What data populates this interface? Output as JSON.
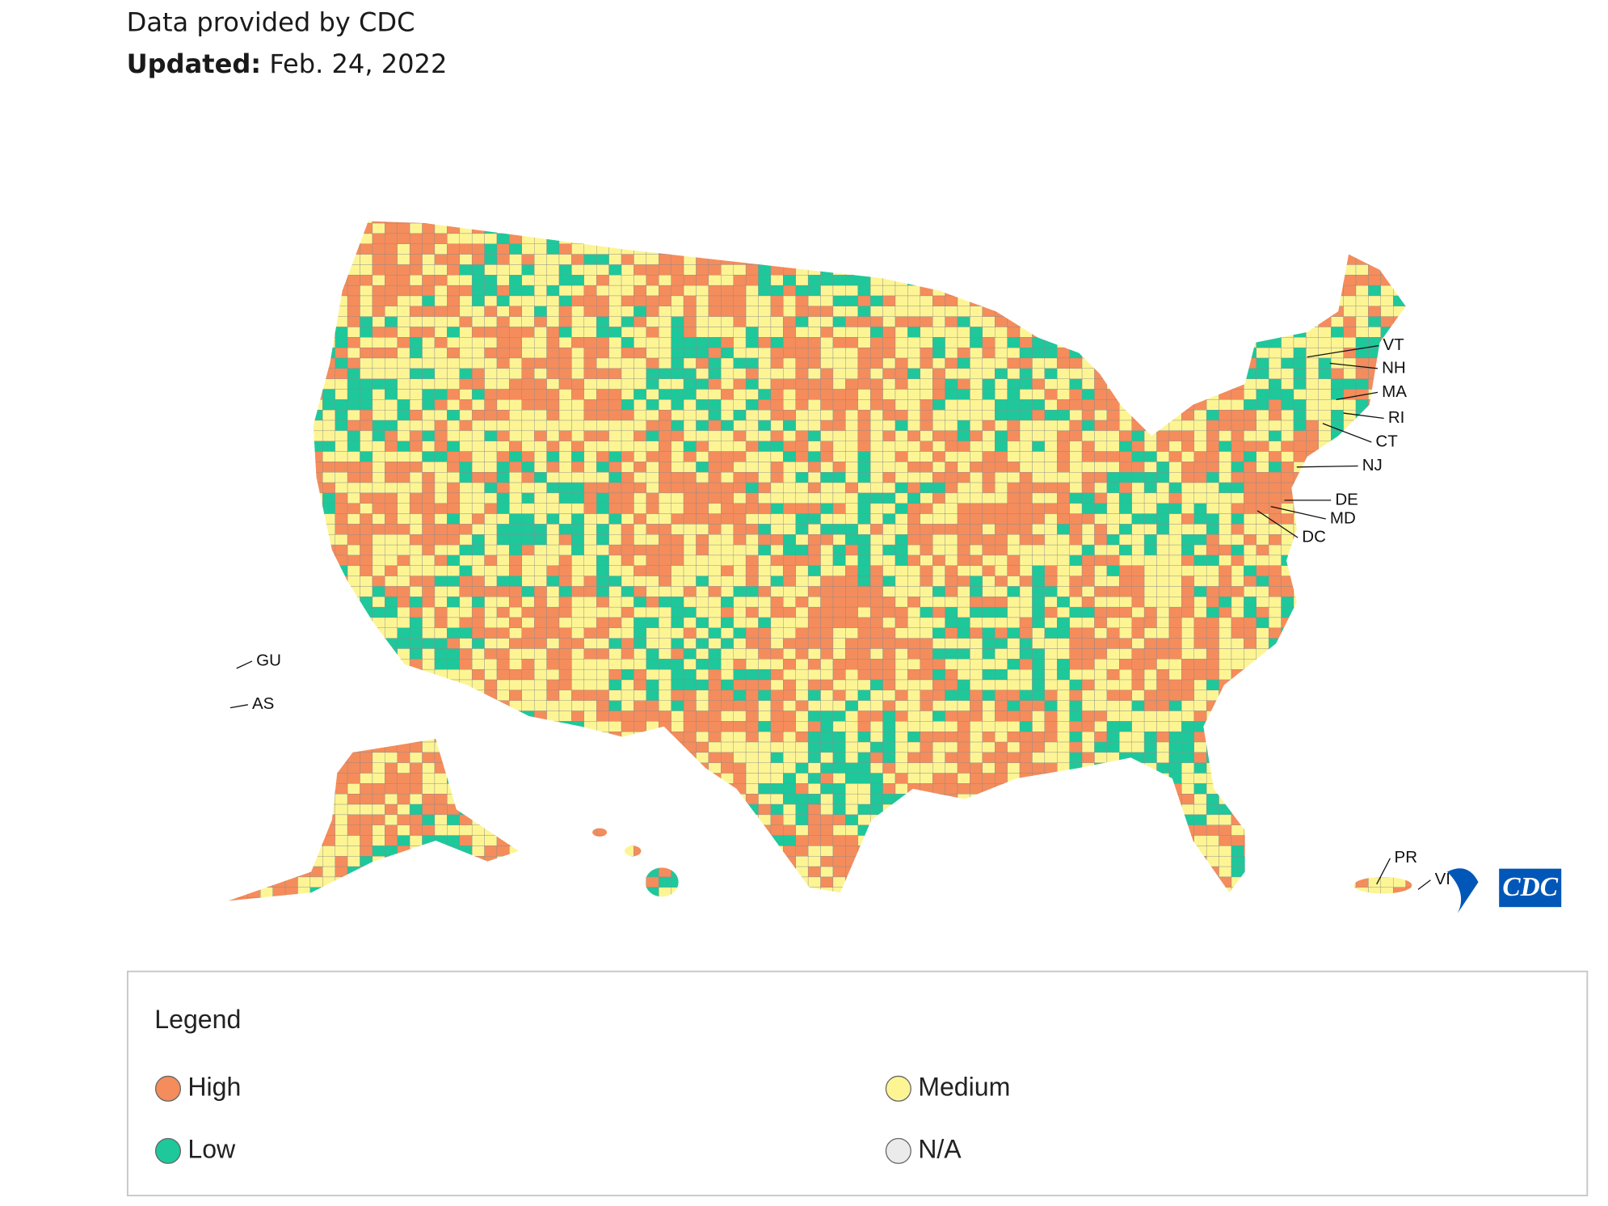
{
  "header": {
    "source": "Data provided by CDC",
    "updated_label": "Updated:",
    "updated_date": "Feb. 24, 2022"
  },
  "map": {
    "labels": [
      {
        "text": "VT",
        "tx": 1333,
        "ty": 333,
        "lx": 1260,
        "ly": 344
      },
      {
        "text": "NH",
        "tx": 1332,
        "ty": 355,
        "lx": 1282,
        "ly": 350
      },
      {
        "text": "MA",
        "tx": 1332,
        "ty": 378,
        "lx": 1288,
        "ly": 385
      },
      {
        "text": "RI",
        "tx": 1338,
        "ty": 403,
        "lx": 1295,
        "ly": 398
      },
      {
        "text": "CT",
        "tx": 1326,
        "ty": 426,
        "lx": 1275,
        "ly": 408
      },
      {
        "text": "NJ",
        "tx": 1313,
        "ty": 449,
        "lx": 1250,
        "ly": 450
      },
      {
        "text": "DE",
        "tx": 1287,
        "ty": 482,
        "lx": 1238,
        "ly": 482
      },
      {
        "text": "MD",
        "tx": 1282,
        "ty": 500,
        "lx": 1225,
        "ly": 488
      },
      {
        "text": "DC",
        "tx": 1255,
        "ty": 518,
        "lx": 1212,
        "ly": 492
      },
      {
        "text": "GU",
        "tx": 247,
        "ty": 637,
        "lx": 228,
        "ly": 644
      },
      {
        "text": "AS",
        "tx": 243,
        "ty": 679,
        "lx": 222,
        "ly": 682
      },
      {
        "text": "PR",
        "tx": 1344,
        "ty": 827,
        "lx": 1327,
        "ly": 852
      },
      {
        "text": "VI",
        "tx": 1383,
        "ty": 848,
        "lx": 1367,
        "ly": 857
      }
    ]
  },
  "logo": "CDC",
  "legend": {
    "title": "Legend",
    "items": [
      {
        "label": "High",
        "color": "#f58c5b"
      },
      {
        "label": "Medium",
        "color": "#fdf594"
      },
      {
        "label": "Low",
        "color": "#1ec89a"
      },
      {
        "label": "N/A",
        "color": "#ebebeb"
      }
    ]
  }
}
